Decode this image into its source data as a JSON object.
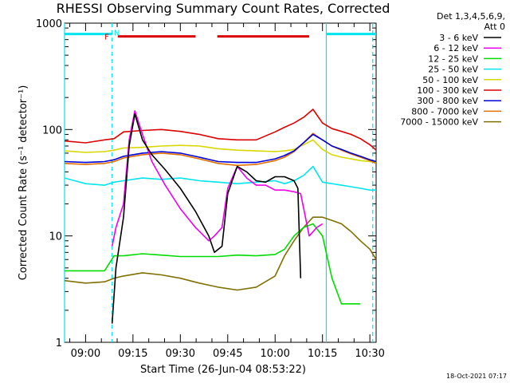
{
  "colors": {
    "background": "#ffffff",
    "axes": "#000000",
    "text": "#000000",
    "cyan": "#00e5ee",
    "red": "#dd0000",
    "orange": "#e07000"
  },
  "chart_data": {
    "type": "line",
    "title": "RHESSI Observing Summary Count Rates, Corrected",
    "xlabel": "Start Time (26-Jun-04 08:53:22)",
    "ylabel": "Corrected Count Rate (s⁻¹ detector⁻¹)",
    "yscale": "log",
    "xlim": [
      8.889,
      10.533
    ],
    "ylim": [
      1,
      1000
    ],
    "x_units": "hours (UT, decimal)",
    "xticks": [
      {
        "value": 9.0,
        "label": "09:00"
      },
      {
        "value": 9.25,
        "label": "09:15"
      },
      {
        "value": 9.5,
        "label": "09:30"
      },
      {
        "value": 9.75,
        "label": "09:45"
      },
      {
        "value": 10.0,
        "label": "10:00"
      },
      {
        "value": 10.25,
        "label": "10:15"
      },
      {
        "value": 10.5,
        "label": "10:30"
      }
    ],
    "yticks": [
      {
        "value": 1,
        "label": "1"
      },
      {
        "value": 10,
        "label": "10"
      },
      {
        "value": 100,
        "label": "100"
      },
      {
        "value": 1000,
        "label": "1000"
      }
    ],
    "detector_info": [
      "Det 1,3,4,5,6,9,",
      "Att 0"
    ],
    "footer_date": "18-Oct-2021 07:17",
    "legend_position": "top-right outside plot",
    "series": [
      {
        "name": "3 - 6 keV",
        "color": "#000000",
        "x": [
          8.889,
          9.02,
          9.1,
          9.14,
          9.16,
          9.2,
          9.23,
          9.26,
          9.3,
          9.35,
          9.42,
          9.5,
          9.58,
          9.65,
          9.68,
          9.72,
          9.75,
          9.8,
          9.85,
          9.9,
          9.95,
          10.0,
          10.05,
          10.1,
          10.12,
          10.135
        ],
        "y": [
          null,
          null,
          null,
          1.5,
          5,
          15,
          70,
          140,
          80,
          58,
          42,
          28,
          17,
          10,
          7,
          8,
          25,
          45,
          40,
          33,
          32,
          36,
          36,
          33,
          28,
          4
        ]
      },
      {
        "name": "6 - 12 keV",
        "color": "#ee00ee",
        "x": [
          8.889,
          9.1,
          9.14,
          9.16,
          9.2,
          9.23,
          9.26,
          9.3,
          9.35,
          9.42,
          9.5,
          9.58,
          9.65,
          9.68,
          9.72,
          9.75,
          9.8,
          9.85,
          9.9,
          9.95,
          10.0,
          10.05,
          10.1,
          10.135,
          10.18,
          10.22,
          10.25
        ],
        "y": [
          null,
          null,
          8,
          12,
          20,
          80,
          150,
          90,
          50,
          30,
          18,
          12,
          9,
          10,
          12,
          28,
          45,
          35,
          30,
          30,
          27,
          27,
          26,
          25,
          10,
          12,
          13
        ]
      },
      {
        "name": "12 - 25 keV",
        "color": "#00dd00",
        "x": [
          8.889,
          9.0,
          9.1,
          9.15,
          9.2,
          9.3,
          9.4,
          9.5,
          9.6,
          9.7,
          9.8,
          9.9,
          10.0,
          10.05,
          10.1,
          10.15,
          10.2,
          10.25,
          10.3,
          10.35,
          10.4,
          10.45
        ],
        "y": [
          4.7,
          4.7,
          4.7,
          6.5,
          6.5,
          6.8,
          6.6,
          6.4,
          6.4,
          6.4,
          6.6,
          6.5,
          6.7,
          7.5,
          10,
          12,
          13,
          10,
          4,
          2.3,
          2.3,
          2.3
        ]
      },
      {
        "name": "25 - 50 keV",
        "color": "#00e5ee",
        "x": [
          8.889,
          9.0,
          9.1,
          9.15,
          9.2,
          9.3,
          9.4,
          9.5,
          9.6,
          9.7,
          9.8,
          9.9,
          10.0,
          10.05,
          10.1,
          10.15,
          10.2,
          10.25,
          10.3,
          10.35,
          10.4,
          10.45,
          10.5,
          10.533
        ],
        "y": [
          35,
          31,
          30,
          32,
          33,
          35,
          34,
          35,
          33,
          32,
          31,
          32,
          33,
          31,
          33,
          37,
          45,
          32,
          31,
          30,
          29,
          28,
          27,
          27
        ]
      },
      {
        "name": "50 - 100 keV",
        "color": "#d8d800",
        "x": [
          8.889,
          9.0,
          9.1,
          9.15,
          9.2,
          9.3,
          9.4,
          9.5,
          9.6,
          9.7,
          9.8,
          9.9,
          10.0,
          10.05,
          10.1,
          10.15,
          10.2,
          10.25,
          10.3,
          10.35,
          10.4,
          10.45,
          10.5,
          10.533
        ],
        "y": [
          63,
          61,
          62,
          64,
          67,
          68,
          70,
          71,
          70,
          66,
          64,
          63,
          62,
          63,
          65,
          72,
          80,
          65,
          58,
          55,
          53,
          51,
          50,
          49
        ]
      },
      {
        "name": "100 - 300 keV",
        "color": "#dd0000",
        "x": [
          8.889,
          9.0,
          9.1,
          9.15,
          9.2,
          9.3,
          9.4,
          9.5,
          9.6,
          9.7,
          9.8,
          9.9,
          10.0,
          10.05,
          10.1,
          10.15,
          10.2,
          10.25,
          10.3,
          10.35,
          10.4,
          10.45,
          10.5,
          10.533
        ],
        "y": [
          78,
          75,
          80,
          82,
          95,
          98,
          100,
          96,
          90,
          82,
          80,
          80,
          95,
          105,
          115,
          130,
          155,
          115,
          102,
          96,
          90,
          82,
          72,
          64
        ]
      },
      {
        "name": "300 - 800 keV",
        "color": "#0000dd",
        "x": [
          8.889,
          9.0,
          9.1,
          9.15,
          9.2,
          9.3,
          9.4,
          9.5,
          9.6,
          9.7,
          9.8,
          9.9,
          10.0,
          10.05,
          10.1,
          10.15,
          10.2,
          10.25,
          10.3,
          10.35,
          10.4,
          10.45,
          10.5,
          10.533
        ],
        "y": [
          50,
          49,
          50,
          52,
          56,
          60,
          62,
          60,
          55,
          50,
          49,
          49,
          53,
          57,
          63,
          75,
          90,
          80,
          70,
          65,
          60,
          56,
          52,
          50
        ]
      },
      {
        "name": "800 - 7000 keV",
        "color": "#e07000",
        "x": [
          8.889,
          9.0,
          9.1,
          9.15,
          9.2,
          9.3,
          9.4,
          9.5,
          9.6,
          9.7,
          9.8,
          9.9,
          10.0,
          10.05,
          10.1,
          10.15,
          10.2,
          10.25,
          10.3,
          10.35,
          10.4,
          10.45,
          10.5,
          10.533
        ],
        "y": [
          48,
          47,
          48,
          50,
          54,
          58,
          60,
          58,
          53,
          48,
          46,
          47,
          51,
          55,
          62,
          75,
          92,
          80,
          70,
          64,
          59,
          55,
          51,
          48
        ]
      },
      {
        "name": "7000 - 15000 keV",
        "color": "#807000",
        "x": [
          8.889,
          9.0,
          9.1,
          9.15,
          9.2,
          9.3,
          9.4,
          9.5,
          9.6,
          9.7,
          9.8,
          9.9,
          10.0,
          10.05,
          10.1,
          10.15,
          10.2,
          10.25,
          10.3,
          10.35,
          10.4,
          10.45,
          10.5,
          10.533
        ],
        "y": [
          3.8,
          3.6,
          3.7,
          4.0,
          4.2,
          4.5,
          4.3,
          4.0,
          3.6,
          3.3,
          3.1,
          3.3,
          4.2,
          6.5,
          9,
          12,
          15,
          15,
          14,
          13,
          11,
          9,
          7.5,
          6
        ]
      }
    ],
    "annotations": {
      "F": {
        "label": "F",
        "color": "#dd0000",
        "x": 9.158
      },
      "N": {
        "label": "N",
        "color": "#00e5ee",
        "x": 9.165
      },
      "flare_bars": {
        "color": "#dd0000",
        "y": 750,
        "segments": [
          [
            9.17,
            9.58
          ],
          [
            9.695,
            10.18
          ]
        ]
      },
      "night_bars": {
        "color": "#00e5ee",
        "y": 790,
        "segments": [
          [
            8.889,
            9.14
          ],
          [
            10.27,
            10.533
          ]
        ]
      },
      "night_lines": {
        "color": "#00e5ee",
        "solid_x": [
          8.889,
          10.27
        ],
        "dashed_x": [
          9.14,
          10.515
        ]
      }
    }
  }
}
